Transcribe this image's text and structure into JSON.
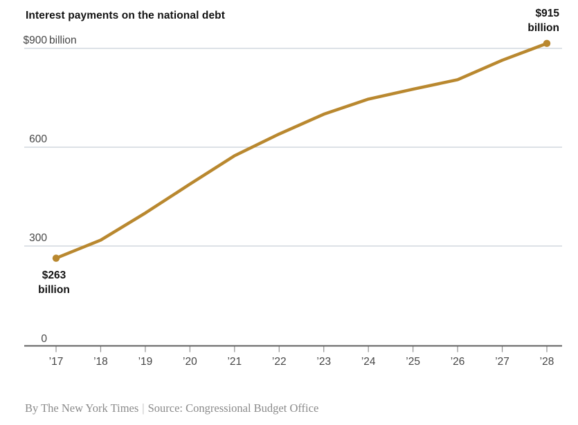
{
  "chart_data": {
    "type": "line",
    "title": "Interest payments on the national debt",
    "x_tick_labels": [
      "’17",
      "’18",
      "’19",
      "’20",
      "’21",
      "’22",
      "’23",
      "’24",
      "’25",
      "’26",
      "’27",
      "’28"
    ],
    "years": [
      2017,
      2018,
      2019,
      2020,
      2021,
      2022,
      2023,
      2024,
      2025,
      2026,
      2027,
      2028
    ],
    "series": [
      {
        "name": "Interest payments ($ billions)",
        "values": [
          263,
          318,
          400,
          488,
          574,
          640,
          700,
          746,
          776,
          805,
          864,
          915
        ]
      }
    ],
    "ylim": [
      0,
      960
    ],
    "y_gridlines": [
      {
        "value": 0,
        "num": "0",
        "suffix": ""
      },
      {
        "value": 300,
        "num": "300",
        "suffix": ""
      },
      {
        "value": 600,
        "num": "600",
        "suffix": ""
      },
      {
        "value": 900,
        "num": "$900",
        "suffix": " billion"
      }
    ],
    "annotations": [
      {
        "year": 2017,
        "value": 263,
        "text_value": "$263",
        "text_unit": "billion"
      },
      {
        "year": 2028,
        "value": 915,
        "text_value": "$915",
        "text_unit": "billion"
      }
    ],
    "legend": "none",
    "grid": "horizontal",
    "line_color": "#b9882f",
    "grid_color": "#c6cfd6",
    "axis_color": "#606060",
    "tick_color": "#8f8f8f",
    "label_color": "#454545"
  },
  "footer": {
    "byline": "By The New York Times",
    "separator": "|",
    "source": "Source: Congressional Budget Office"
  }
}
